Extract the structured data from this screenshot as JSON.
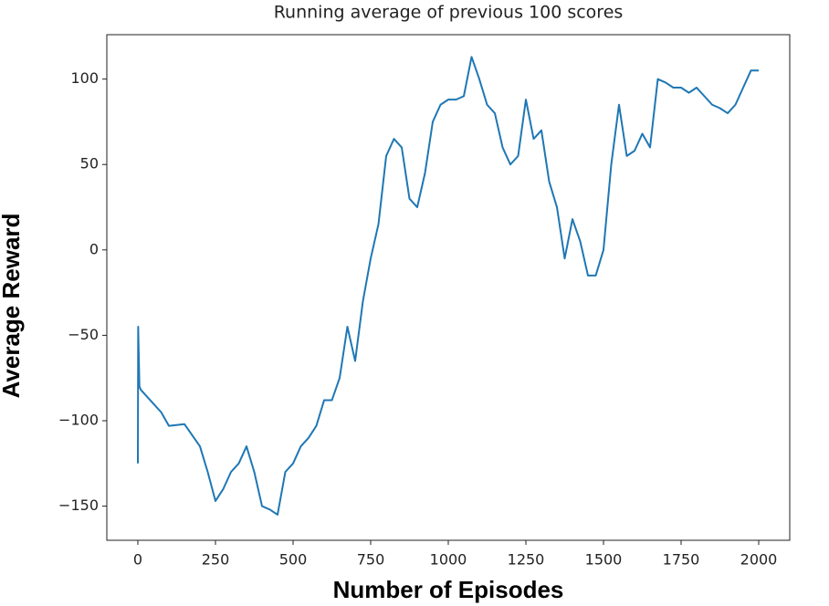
{
  "chart_data": {
    "type": "line",
    "title": "Running  average of previous 100 scores",
    "x_label": "Number of Episodes",
    "y_label": "Average Reward",
    "x": [
      0,
      1,
      5,
      10,
      25,
      50,
      75,
      100,
      150,
      200,
      225,
      250,
      275,
      300,
      325,
      350,
      375,
      400,
      425,
      450,
      475,
      500,
      525,
      550,
      575,
      600,
      625,
      650,
      675,
      700,
      725,
      750,
      775,
      800,
      825,
      850,
      875,
      900,
      925,
      950,
      975,
      1000,
      1025,
      1050,
      1075,
      1100,
      1125,
      1150,
      1175,
      1200,
      1225,
      1250,
      1275,
      1300,
      1325,
      1350,
      1375,
      1400,
      1425,
      1450,
      1475,
      1500,
      1525,
      1550,
      1575,
      1600,
      1625,
      1650,
      1675,
      1700,
      1725,
      1750,
      1775,
      1800,
      1825,
      1850,
      1875,
      1900,
      1925,
      1950,
      1975,
      2000
    ],
    "series": [
      {
        "name": "Average Reward",
        "color": "#1f77b4",
        "values": [
          -125,
          -45,
          -80,
          -82,
          -85,
          -90,
          -95,
          -103,
          -102,
          -115,
          -130,
          -147,
          -140,
          -130,
          -125,
          -115,
          -130,
          -150,
          -152,
          -155,
          -130,
          -125,
          -115,
          -110,
          -103,
          -88,
          -88,
          -75,
          -45,
          -65,
          -30,
          -5,
          15,
          55,
          65,
          60,
          30,
          25,
          45,
          75,
          85,
          88,
          88,
          90,
          113,
          100,
          85,
          80,
          60,
          50,
          55,
          88,
          65,
          70,
          40,
          25,
          -5,
          18,
          5,
          -15,
          -15,
          0,
          50,
          85,
          55,
          58,
          68,
          60,
          100,
          98,
          95,
          95,
          92,
          95,
          90,
          85,
          83,
          80,
          85,
          95,
          105,
          105
        ]
      }
    ],
    "xlim": [
      -100,
      2100
    ],
    "ylim": [
      -170,
      126
    ],
    "xticks": [
      0,
      250,
      500,
      750,
      1000,
      1250,
      1500,
      1750,
      2000
    ],
    "yticks": [
      {
        "value": -150,
        "label": "−150"
      },
      {
        "value": -100,
        "label": "−100"
      },
      {
        "value": -50,
        "label": "−50"
      },
      0,
      50,
      100
    ]
  }
}
